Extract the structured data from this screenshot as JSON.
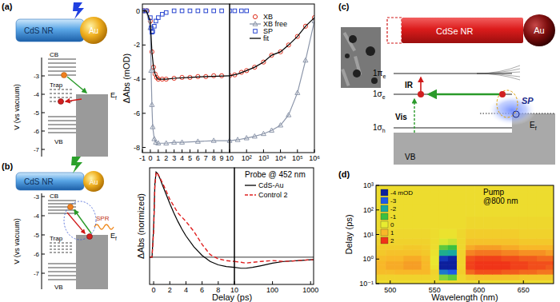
{
  "chart_data": [
    {
      "type": "line",
      "y_label": "ΔAbs (mOD)",
      "xlim": [
        -1,
        10
      ],
      "ylim": [
        -8.3,
        0.4
      ],
      "xticks": [
        -1,
        0,
        1,
        2,
        3,
        4,
        5,
        6,
        7,
        8,
        9
      ],
      "yticks": [
        0,
        -2,
        -4,
        -6,
        -8
      ],
      "legend": "upper right",
      "series": [
        {
          "name": "XB",
          "color": "#e0301e",
          "marker": "circle",
          "x": [
            -0.8,
            -0.4,
            0,
            0.2,
            0.4,
            0.6,
            0.8,
            1,
            1.5,
            2,
            3,
            4,
            5,
            6,
            7,
            8,
            9
          ],
          "values": [
            0,
            0,
            -0.6,
            -2.4,
            -3.3,
            -3.7,
            -3.9,
            -4.0,
            -4.0,
            -4.0,
            -3.95,
            -3.9,
            -3.9,
            -3.85,
            -3.85,
            -3.8,
            -3.8
          ]
        },
        {
          "name": "XB free",
          "color": "#8c96aa",
          "marker": "triangle",
          "line_style": "solid",
          "x": [
            -1,
            -0.5,
            0,
            0.1,
            0.2,
            0.3,
            0.5,
            0.7,
            1,
            2,
            3,
            4,
            6,
            8,
            10
          ],
          "values": [
            0,
            0,
            -1.0,
            -3.5,
            -5.5,
            -6.8,
            -7.5,
            -7.7,
            -7.75,
            -7.75,
            -7.7,
            -7.7,
            -7.65,
            -7.6,
            -7.6
          ]
        },
        {
          "name": "SP",
          "color": "#2a46d0",
          "marker": "square",
          "x": [
            -1,
            -0.5,
            0,
            0.1,
            0.2,
            0.3,
            0.5,
            0.7,
            1,
            1.5,
            2,
            3,
            4,
            5,
            6,
            7,
            8,
            9
          ],
          "values": [
            0,
            0,
            -0.4,
            -1.0,
            -1.25,
            -1.2,
            -0.9,
            -0.6,
            -0.4,
            -0.2,
            -0.1,
            0,
            0,
            0,
            0,
            0,
            0,
            0
          ]
        },
        {
          "name": "fit",
          "color": "#000000",
          "line_style": "solid",
          "x": [
            -1,
            -0.5,
            0,
            0.2,
            0.4,
            0.6,
            0.8,
            1,
            1.5,
            2,
            3,
            5,
            7,
            10
          ],
          "values": [
            0,
            0,
            -0.6,
            -2.4,
            -3.3,
            -3.7,
            -3.9,
            -4.0,
            -4.0,
            -4.0,
            -3.95,
            -3.9,
            -3.85,
            -3.8
          ]
        }
      ]
    },
    {
      "type": "line",
      "log": "x",
      "tick_labels": "x",
      "xlim": [
        10,
        1000000
      ],
      "ylim": [
        -8.3,
        0.4
      ],
      "xticks": [
        10,
        {
          "value": 100,
          "label": "10²"
        },
        {
          "value": 1000,
          "label": "10³"
        },
        {
          "value": 10000,
          "label": "10⁴"
        },
        {
          "value": 100000,
          "label": "10⁵"
        },
        {
          "value": 1000000,
          "label": "10⁶"
        }
      ],
      "series": [
        {
          "color": "#e0301e",
          "marker": "circle",
          "x": [
            10,
            20,
            50,
            100,
            300,
            1000,
            3000,
            10000,
            30000,
            100000,
            300000,
            1000000
          ],
          "values": [
            -3.8,
            -3.75,
            -3.6,
            -3.5,
            -3.3,
            -3.0,
            -2.6,
            -2.4,
            -2.0,
            -1.5,
            -0.9,
            -0.4
          ]
        },
        {
          "color": "#8c96aa",
          "marker": "triangle",
          "line_style": "solid",
          "x": [
            10,
            30,
            100,
            300,
            1000,
            3000,
            10000,
            30000,
            100000,
            300000,
            1000000
          ],
          "values": [
            -7.6,
            -7.55,
            -7.45,
            -7.35,
            -7.2,
            -7.0,
            -6.7,
            -6.1,
            -4.8,
            -2.9,
            -0.6
          ]
        },
        {
          "color": "#2a46d0",
          "marker": "square",
          "x": [
            10,
            20,
            50,
            100
          ],
          "values": [
            0,
            0,
            0,
            0
          ]
        },
        {
          "color": "#000000",
          "line_style": "solid",
          "x": [
            10,
            30,
            100,
            300,
            1000,
            3000,
            10000,
            30000,
            100000,
            300000,
            1000000
          ],
          "values": [
            -3.8,
            -3.7,
            -3.5,
            -3.3,
            -3.0,
            -2.6,
            -2.4,
            -2.0,
            -1.5,
            -0.9,
            -0.4
          ]
        }
      ]
    },
    {
      "type": "line",
      "y_label": "ΔAbs (normized)",
      "x_label": "Delay (ps)",
      "annotation": "Probe @ 452 nm",
      "xlim": [
        -0.5,
        10
      ],
      "ylim": [
        -0.32,
        1.05
      ],
      "xticks": [
        0,
        2,
        4,
        6,
        8
      ],
      "yticks": [
        0
      ],
      "grid": true,
      "tick_labels": "x",
      "legend": "upper right",
      "series": [
        {
          "name": "CdS-Au",
          "color": "#000000",
          "line_style": "solid",
          "x": [
            -0.5,
            -0.2,
            0,
            0.15,
            0.3,
            0.5,
            0.8,
            1,
            1.5,
            2,
            2.5,
            3,
            3.5,
            4,
            5,
            6,
            7,
            8,
            9,
            10
          ],
          "values": [
            0,
            0,
            0.35,
            0.85,
            1.0,
            0.98,
            0.92,
            0.87,
            0.75,
            0.63,
            0.52,
            0.42,
            0.33,
            0.25,
            0.12,
            0.02,
            -0.05,
            -0.09,
            -0.11,
            -0.12
          ]
        },
        {
          "name": "Control 2",
          "color": "#e02020",
          "line_style": "dashed",
          "x": [
            -0.5,
            -0.2,
            0,
            0.15,
            0.3,
            0.5,
            0.8,
            1,
            1.5,
            2,
            2.5,
            3,
            3.5,
            4,
            5,
            6,
            7,
            8,
            9,
            10
          ],
          "values": [
            0,
            0,
            0.3,
            0.82,
            1.0,
            0.98,
            0.93,
            0.89,
            0.79,
            0.68,
            0.6,
            0.52,
            0.47,
            0.42,
            0.3,
            0.15,
            0.03,
            -0.02,
            -0.04,
            -0.05
          ]
        }
      ]
    },
    {
      "type": "line",
      "log": "x",
      "tick_labels": "x",
      "xlim": [
        10,
        1200
      ],
      "ylim": [
        -0.32,
        1.05
      ],
      "xticks": [
        10,
        100,
        1000
      ],
      "yticks": [
        0
      ],
      "grid": true,
      "series": [
        {
          "color": "#000000",
          "line_style": "solid",
          "x": [
            10,
            15,
            20,
            30,
            50,
            100,
            200,
            500,
            1000,
            1200
          ],
          "values": [
            -0.12,
            -0.13,
            -0.13,
            -0.12,
            -0.1,
            -0.07,
            -0.05,
            -0.04,
            -0.03,
            -0.03
          ]
        },
        {
          "color": "#e02020",
          "line_style": "dashed",
          "x": [
            10,
            15,
            20,
            30,
            50,
            100,
            200,
            500,
            1000,
            1200
          ],
          "values": [
            -0.05,
            -0.06,
            -0.07,
            -0.06,
            -0.05,
            -0.04,
            -0.05,
            -0.04,
            -0.03,
            -0.03
          ]
        }
      ]
    },
    {
      "type": "heatmap",
      "x_label": "Wavelength (nm)",
      "y_label": "Delay (ps)",
      "annotation": [
        "Pump",
        "@800 nm"
      ],
      "log": "y",
      "xlim": [
        484,
        684
      ],
      "ylim": [
        0.1,
        1000
      ],
      "xticks": [
        500,
        550,
        600,
        650
      ],
      "yticks": [
        {
          "value": 0.1,
          "label": "10⁻¹"
        },
        {
          "value": 1,
          "label": "10⁰"
        },
        {
          "value": 10,
          "label": "10¹"
        },
        {
          "value": 100,
          "label": "10²"
        },
        {
          "value": 1000,
          "label": "10³"
        }
      ],
      "x": [
        480,
        490,
        500,
        510,
        520,
        530,
        540,
        550,
        560,
        570,
        580,
        590,
        600,
        610,
        620,
        630,
        640,
        650,
        660,
        670,
        680,
        690
      ],
      "y": [
        0.1,
        0.2,
        0.3,
        0.5,
        0.7,
        1,
        2,
        3,
        5,
        10,
        30,
        100,
        300,
        1000
      ],
      "values": [
        [
          0.3,
          0.3,
          0.3,
          0.3,
          0.3,
          0.3,
          0.3,
          0.3,
          0.3,
          0.3,
          0.3,
          0.3,
          0.3,
          0.3,
          0.3,
          0.3,
          0.3,
          0.3,
          0.3,
          0.3,
          0.3,
          0.3
        ],
        [
          0.5,
          0.5,
          0.5,
          0.5,
          0.5,
          0.5,
          0.5,
          0.4,
          -0.6,
          -0.8,
          0.4,
          0.7,
          0.8,
          0.8,
          0.8,
          0.8,
          0.8,
          0.7,
          0.7,
          0.7,
          0.7,
          0.7
        ],
        [
          0.9,
          0.9,
          0.9,
          1.0,
          1.0,
          1.0,
          1.0,
          0.5,
          -2.6,
          -3.0,
          0.6,
          1.6,
          1.8,
          1.8,
          1.8,
          1.7,
          1.7,
          1.6,
          1.6,
          1.5,
          1.5,
          1.5
        ],
        [
          1.0,
          1.0,
          1.1,
          1.1,
          1.2,
          1.2,
          1.0,
          0.2,
          -4.0,
          -4.2,
          0.5,
          1.9,
          2.0,
          2.0,
          2.0,
          2.0,
          1.9,
          1.9,
          1.8,
          1.8,
          1.7,
          1.7
        ],
        [
          1.0,
          1.0,
          1.1,
          1.1,
          1.2,
          1.2,
          1.0,
          0.1,
          -4.1,
          -4.3,
          0.5,
          1.9,
          2.0,
          2.0,
          2.0,
          2.0,
          1.9,
          1.9,
          1.8,
          1.8,
          1.8,
          1.7
        ],
        [
          0.9,
          0.9,
          1.0,
          1.0,
          1.1,
          1.1,
          0.9,
          0.1,
          -3.6,
          -3.9,
          0.5,
          1.8,
          1.9,
          1.9,
          1.9,
          1.8,
          1.8,
          1.7,
          1.7,
          1.6,
          1.6,
          1.6
        ],
        [
          0.7,
          0.7,
          0.8,
          0.8,
          0.8,
          0.8,
          0.7,
          0.2,
          -1.8,
          -2.0,
          0.5,
          1.4,
          1.5,
          1.5,
          1.5,
          1.4,
          1.4,
          1.3,
          1.3,
          1.3,
          1.2,
          1.2
        ],
        [
          0.6,
          0.6,
          0.6,
          0.6,
          0.7,
          0.7,
          0.6,
          0.3,
          -0.8,
          -1.0,
          0.4,
          1.1,
          1.2,
          1.2,
          1.2,
          1.1,
          1.1,
          1.0,
          1.0,
          1.0,
          1.0,
          0.9
        ],
        [
          0.5,
          0.5,
          0.5,
          0.5,
          0.5,
          0.5,
          0.5,
          0.3,
          -0.1,
          -0.2,
          0.4,
          0.8,
          0.8,
          0.8,
          0.8,
          0.8,
          0.8,
          0.7,
          0.7,
          0.7,
          0.7,
          0.7
        ],
        [
          0.4,
          0.4,
          0.4,
          0.4,
          0.4,
          0.4,
          0.4,
          0.3,
          0.2,
          0.2,
          0.4,
          0.6,
          0.6,
          0.6,
          0.6,
          0.6,
          0.6,
          0.5,
          0.5,
          0.5,
          0.5,
          0.5
        ],
        [
          0.3,
          0.3,
          0.3,
          0.3,
          0.3,
          0.3,
          0.3,
          0.3,
          0.3,
          0.3,
          0.3,
          0.4,
          0.4,
          0.4,
          0.4,
          0.4,
          0.4,
          0.4,
          0.4,
          0.4,
          0.4,
          0.4
        ],
        [
          0.3,
          0.3,
          0.3,
          0.3,
          0.3,
          0.3,
          0.3,
          0.3,
          0.3,
          0.3,
          0.3,
          0.3,
          0.3,
          0.3,
          0.3,
          0.3,
          0.3,
          0.3,
          0.3,
          0.3,
          0.3,
          0.3
        ],
        [
          0.3,
          0.3,
          0.3,
          0.3,
          0.3,
          0.3,
          0.3,
          0.3,
          0.3,
          0.3,
          0.3,
          0.3,
          0.3,
          0.3,
          0.3,
          0.3,
          0.3,
          0.3,
          0.3,
          0.3,
          0.3,
          0.3
        ],
        [
          0.3,
          0.3,
          0.3,
          0.3,
          0.3,
          0.3,
          0.3,
          0.3,
          0.3,
          0.3,
          0.3,
          0.3,
          0.3,
          0.3,
          0.3,
          0.3,
          0.3,
          0.3,
          0.3,
          0.3,
          0.3,
          0.3
        ]
      ],
      "colorbar": {
        "range": [
          -4,
          2
        ],
        "ticks": [
          {
            "value": -4,
            "label": "-4 mOD"
          },
          -3,
          -2,
          -1,
          0,
          1,
          2
        ]
      }
    }
  ],
  "diagrams": {
    "panel_a": {
      "label": "(a)",
      "rod": "CdS NR",
      "particle": "Au",
      "axis_label": "V (vs vacuum)",
      "axis_ticks": [
        -3,
        -4,
        -5,
        -6,
        -7
      ],
      "cb": "CB",
      "trap": "Trap",
      "vb": "VB",
      "fermi": [
        "E",
        "f"
      ]
    },
    "panel_b": {
      "label": "(b)",
      "rod": "CdS NR",
      "particle": "Au",
      "axis_label": "V (vs vacuum)",
      "axis_ticks": [
        -3,
        -4,
        -5,
        -6,
        -7
      ],
      "cb": "CB",
      "trap": "Trap",
      "vb": "VB",
      "spr": "SPR",
      "fermi": [
        "E",
        "f"
      ]
    },
    "panel_c": {
      "label": "(c)",
      "rod": "CdSe NR",
      "particle": "Au",
      "levels": [
        [
          "1π",
          "e"
        ],
        [
          "1σ",
          "e"
        ],
        [
          "1σ",
          "h"
        ]
      ],
      "ir": "IR",
      "vis": "Vis",
      "sp": "SP",
      "vb": "VB",
      "fermi": [
        "E",
        "f"
      ]
    },
    "panel_d": {
      "label": "(d)"
    }
  }
}
